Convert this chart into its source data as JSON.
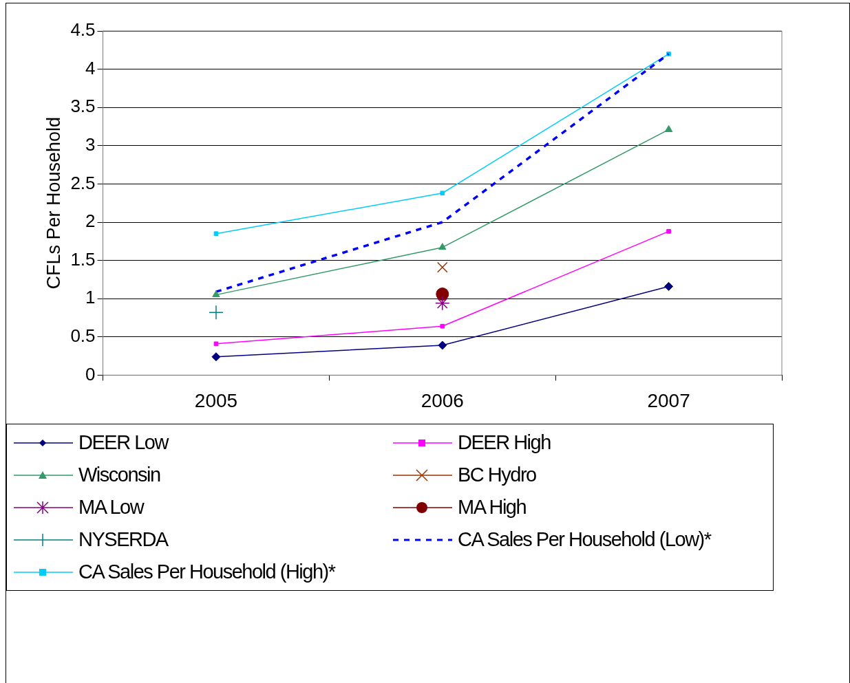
{
  "chart_data": {
    "type": "line",
    "ylabel": "CFLs Per Household",
    "categories": [
      "2005",
      "2006",
      "2007"
    ],
    "ylim": [
      0,
      4.5
    ],
    "yticks": [
      0,
      0.5,
      1,
      1.5,
      2,
      2.5,
      3,
      3.5,
      4,
      4.5
    ],
    "grid": "y",
    "legend": "bottom",
    "series": [
      {
        "name": "DEER Low",
        "color": "#000080",
        "values": [
          0.24,
          0.39,
          1.16
        ],
        "marker": "diamond",
        "line_style": "solid"
      },
      {
        "name": "DEER High",
        "color": "#ff00ff",
        "values": [
          0.41,
          0.64,
          1.88
        ],
        "marker": "square",
        "line_style": "solid"
      },
      {
        "name": "Wisconsin",
        "color": "#339966",
        "values": [
          1.05,
          1.67,
          3.21
        ],
        "marker": "triangle",
        "line_style": "solid"
      },
      {
        "name": "BC Hydro",
        "type": "scatter",
        "color": "#993300",
        "values": [
          null,
          1.41,
          null
        ]
      },
      {
        "name": "MA Low",
        "type": "scatter",
        "color": "#800080",
        "values": [
          null,
          0.94,
          null
        ]
      },
      {
        "name": "MA High",
        "type": "scatter",
        "color": "#800000",
        "values": [
          null,
          1.06,
          null
        ],
        "marker": "circle"
      },
      {
        "name": "NYSERDA",
        "type": "scatter",
        "color": "#008080",
        "values": [
          0.82,
          null,
          null
        ]
      },
      {
        "name": "CA Sales Per Household (Low)*",
        "color": "#0000ff",
        "values": [
          1.09,
          2.0,
          4.2
        ],
        "marker": "none",
        "line_style": "dashed"
      },
      {
        "name": "CA Sales Per Household (High)*",
        "color": "#00ccff",
        "values": [
          1.85,
          2.38,
          4.2
        ],
        "marker": "square",
        "line_style": "solid"
      }
    ]
  }
}
